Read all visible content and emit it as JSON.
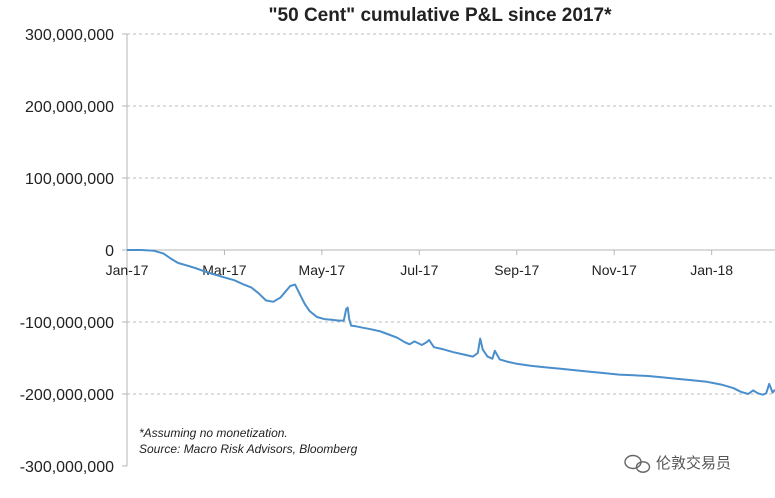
{
  "chart_data": {
    "type": "line",
    "title": "\"50 Cent\" cumulative P&L since 2017*",
    "xlabel": "",
    "ylabel": "",
    "ylim": [
      -300000000,
      300000000
    ],
    "yticks": [
      300000000,
      200000000,
      100000000,
      0,
      -100000000,
      -200000000,
      -300000000
    ],
    "ytick_labels": [
      "300,000,000",
      "200,000,000",
      "100,000,000",
      "0",
      "-100,000,000",
      "-200,000,000",
      "-300,000,000"
    ],
    "x_tick_labels": [
      "Jan-17",
      "Mar-17",
      "May-17",
      "Jul-17",
      "Sep-17",
      "Nov-17",
      "Jan-18"
    ],
    "x_tick_values": [
      0,
      2,
      4,
      6,
      8,
      10,
      12
    ],
    "xlim": [
      0,
      13.3
    ],
    "grid": "horizontal dashed",
    "series": [
      {
        "name": "Cumulative P&L",
        "color": "#4a8fcc",
        "x": [
          0,
          0.3,
          0.55,
          0.75,
          0.9,
          1.05,
          1.2,
          1.4,
          1.6,
          1.8,
          2.0,
          2.2,
          2.4,
          2.55,
          2.7,
          2.85,
          3.0,
          3.15,
          3.25,
          3.35,
          3.45,
          3.55,
          3.65,
          3.75,
          3.9,
          4.05,
          4.2,
          4.35,
          4.45,
          4.5,
          4.53,
          4.56,
          4.6,
          4.7,
          4.85,
          5.0,
          5.2,
          5.4,
          5.55,
          5.7,
          5.8,
          5.9,
          6.05,
          6.15,
          6.2,
          6.3,
          6.5,
          6.7,
          6.9,
          7.1,
          7.2,
          7.25,
          7.3,
          7.4,
          7.5,
          7.55,
          7.65,
          7.8,
          8.0,
          8.3,
          8.6,
          8.9,
          9.2,
          9.5,
          9.8,
          10.1,
          10.4,
          10.7,
          11.0,
          11.3,
          11.6,
          11.9,
          12.2,
          12.45,
          12.6,
          12.75,
          12.85,
          12.95,
          13.05,
          13.12,
          13.18,
          13.25,
          13.3
        ],
        "values": [
          0,
          0,
          -1000000,
          -5000000,
          -12000000,
          -18000000,
          -21000000,
          -25000000,
          -30000000,
          -34000000,
          -38000000,
          -42000000,
          -48000000,
          -52000000,
          -60000000,
          -70000000,
          -72000000,
          -66000000,
          -58000000,
          -50000000,
          -48000000,
          -62000000,
          -75000000,
          -85000000,
          -93000000,
          -96000000,
          -97000000,
          -98000000,
          -98000000,
          -82000000,
          -80000000,
          -96000000,
          -105000000,
          -106000000,
          -108000000,
          -110000000,
          -113000000,
          -118000000,
          -122000000,
          -128000000,
          -131000000,
          -127000000,
          -132000000,
          -128000000,
          -125000000,
          -135000000,
          -138000000,
          -142000000,
          -145000000,
          -148000000,
          -143000000,
          -123000000,
          -138000000,
          -148000000,
          -151000000,
          -140000000,
          -152000000,
          -155000000,
          -158000000,
          -161000000,
          -163000000,
          -165000000,
          -167000000,
          -169000000,
          -171000000,
          -173000000,
          -174000000,
          -175000000,
          -177000000,
          -179000000,
          -181000000,
          -183000000,
          -187000000,
          -192000000,
          -197000000,
          -200000000,
          -195000000,
          -199000000,
          -201000000,
          -199000000,
          -186000000,
          -198000000,
          -194000000
        ]
      }
    ],
    "annotations": [
      "*Assuming no monetization.",
      "Source: Macro Risk Advisors, Bloomberg"
    ],
    "watermark": "伦敦交易员"
  }
}
